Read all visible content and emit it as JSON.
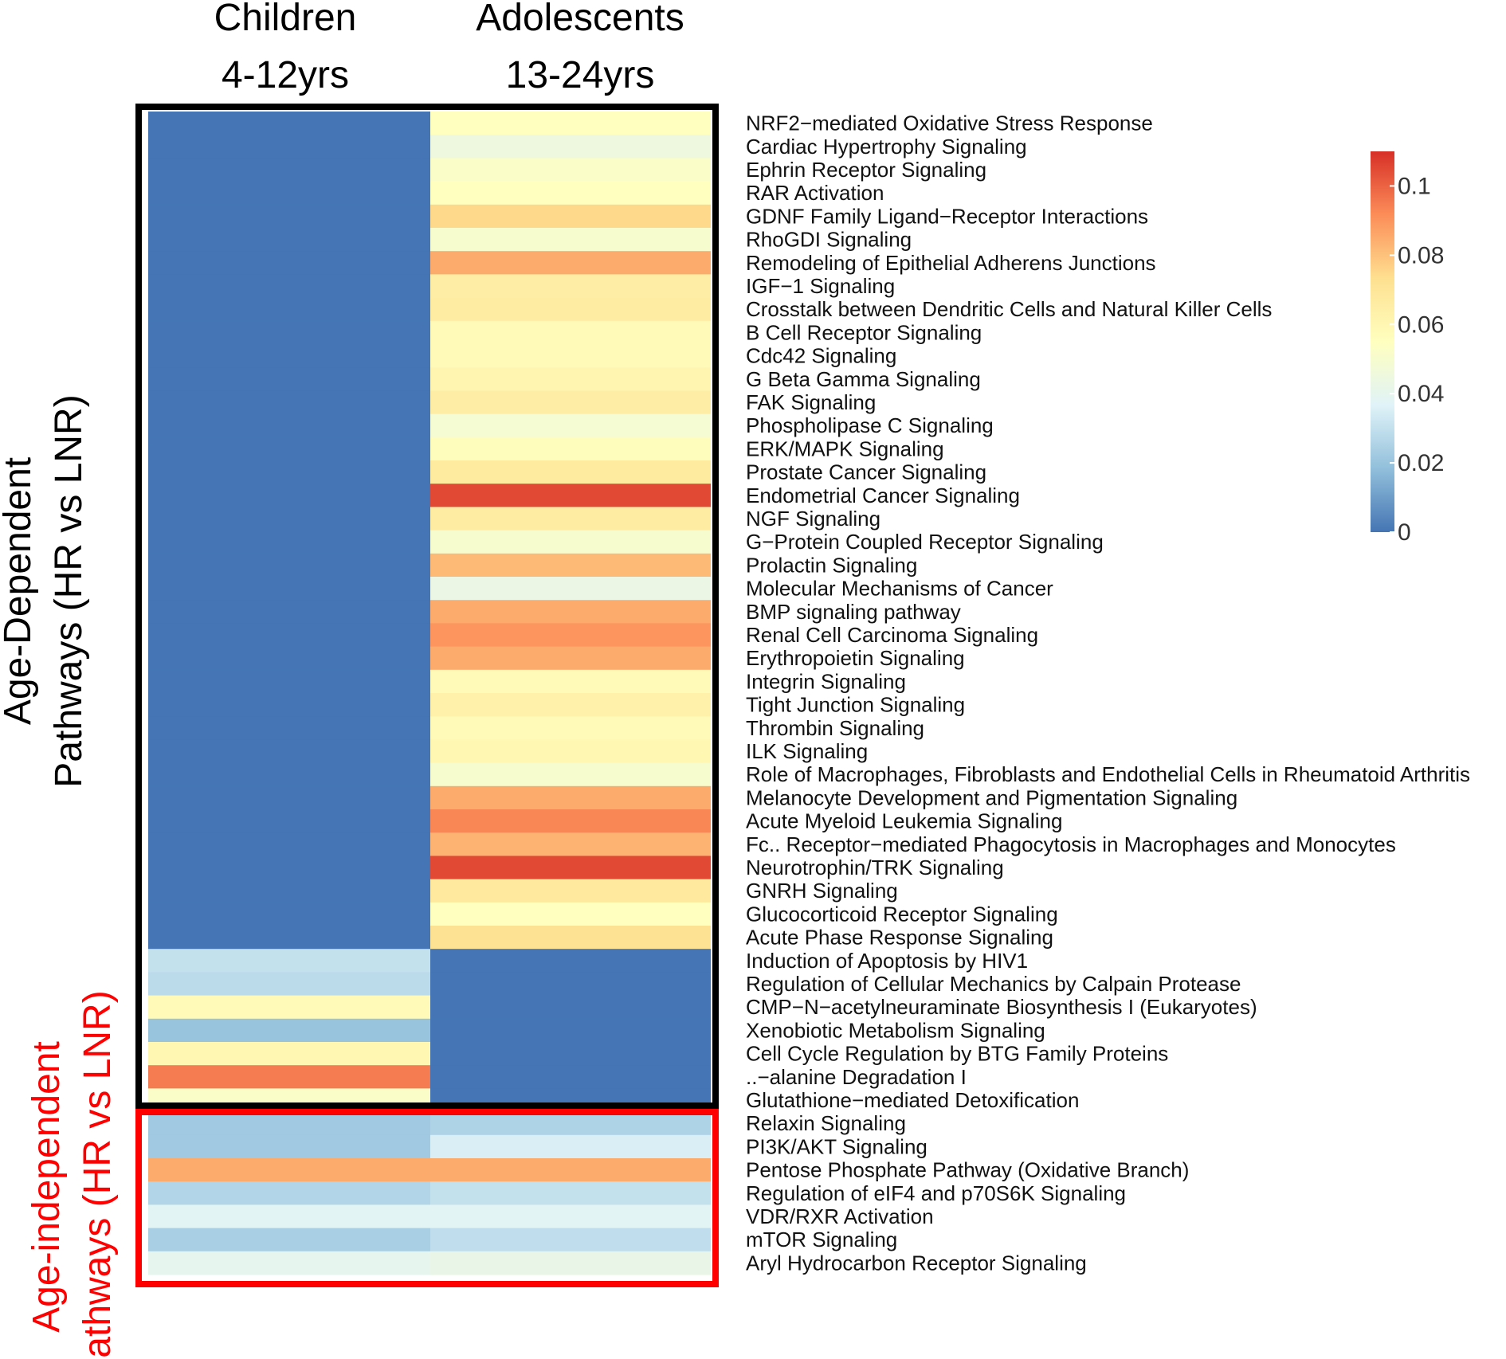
{
  "chart_data": {
    "type": "heatmap",
    "columns": [
      {
        "line1": "Children",
        "line2": "4-12yrs"
      },
      {
        "line1": "Adolescents",
        "line2": "13-24yrs"
      }
    ],
    "groups": [
      {
        "label_line1": "Age-Dependent",
        "label_line2": "Pathways (HR vs LNR)",
        "color": "#000000",
        "start": 0,
        "end": 42
      },
      {
        "label_line1": "Age-independent",
        "label_line2": "Pathways (HR vs LNR)",
        "color": "#ff0000",
        "start": 42,
        "end": 49
      }
    ],
    "rows": [
      {
        "label": "NRF2−mediated Oxidative Stress Response",
        "values": [
          0,
          0.055
        ]
      },
      {
        "label": "Cardiac Hypertrophy Signaling",
        "values": [
          0,
          0.045
        ]
      },
      {
        "label": "Ephrin Receptor Signaling",
        "values": [
          0,
          0.052
        ]
      },
      {
        "label": "RAR Activation",
        "values": [
          0,
          0.055
        ]
      },
      {
        "label": "GDNF Family Ligand−Receptor Interactions",
        "values": [
          0,
          0.075
        ]
      },
      {
        "label": "RhoGDI Signaling",
        "values": [
          0,
          0.05
        ]
      },
      {
        "label": "Remodeling of Epithelial Adherens Junctions",
        "values": [
          0,
          0.085
        ]
      },
      {
        "label": "IGF−1 Signaling",
        "values": [
          0,
          0.065
        ]
      },
      {
        "label": "Crosstalk between Dendritic Cells and Natural Killer Cells",
        "values": [
          0,
          0.066
        ]
      },
      {
        "label": "B Cell Receptor Signaling",
        "values": [
          0,
          0.058
        ]
      },
      {
        "label": "Cdc42 Signaling",
        "values": [
          0,
          0.058
        ]
      },
      {
        "label": "G Beta Gamma Signaling",
        "values": [
          0,
          0.061
        ]
      },
      {
        "label": "FAK Signaling",
        "values": [
          0,
          0.065
        ]
      },
      {
        "label": "Phospholipase C Signaling",
        "values": [
          0,
          0.049
        ]
      },
      {
        "label": "ERK/MAPK Signaling",
        "values": [
          0,
          0.056
        ]
      },
      {
        "label": "Prostate Cancer Signaling",
        "values": [
          0,
          0.067
        ]
      },
      {
        "label": "Endometrial Cancer Signaling",
        "values": [
          0,
          0.105
        ]
      },
      {
        "label": "NGF Signaling",
        "values": [
          0,
          0.066
        ]
      },
      {
        "label": "G−Protein Coupled Receptor Signaling",
        "values": [
          0,
          0.05
        ]
      },
      {
        "label": "Prolactin Signaling",
        "values": [
          0,
          0.082
        ]
      },
      {
        "label": "Molecular Mechanisms of Cancer",
        "values": [
          0,
          0.043
        ]
      },
      {
        "label": "BMP signaling pathway",
        "values": [
          0,
          0.085
        ]
      },
      {
        "label": "Renal Cell Carcinoma Signaling",
        "values": [
          0,
          0.09
        ]
      },
      {
        "label": "Erythropoietin Signaling",
        "values": [
          0,
          0.085
        ]
      },
      {
        "label": "Integrin Signaling",
        "values": [
          0,
          0.058
        ]
      },
      {
        "label": "Tight Junction Signaling",
        "values": [
          0,
          0.063
        ]
      },
      {
        "label": "Thrombin Signaling",
        "values": [
          0,
          0.058
        ]
      },
      {
        "label": "ILK Signaling",
        "values": [
          0,
          0.06
        ]
      },
      {
        "label": "Role of Macrophages, Fibroblasts and Endothelial Cells in Rheumatoid Arthritis",
        "values": [
          0,
          0.05
        ]
      },
      {
        "label": "Melanocyte Development and Pigmentation Signaling",
        "values": [
          0,
          0.085
        ]
      },
      {
        "label": "Acute Myeloid Leukemia Signaling",
        "values": [
          0,
          0.093
        ]
      },
      {
        "label": "Fc.. Receptor−mediated Phagocytosis in Macrophages and Monocytes",
        "values": [
          0,
          0.083
        ]
      },
      {
        "label": "Neurotrophin/TRK Signaling",
        "values": [
          0,
          0.105
        ]
      },
      {
        "label": "GNRH Signaling",
        "values": [
          0,
          0.068
        ]
      },
      {
        "label": "Glucocorticoid Receptor Signaling",
        "values": [
          0,
          0.055
        ]
      },
      {
        "label": "Acute Phase Response Signaling",
        "values": [
          0,
          0.072
        ]
      },
      {
        "label": "Induction of Apoptosis by HIV1",
        "values": [
          0.03,
          0
        ]
      },
      {
        "label": "Regulation of Cellular Mechanics by Calpain Protease",
        "values": [
          0.028,
          0
        ]
      },
      {
        "label": "CMP−N−acetylneuraminate Biosynthesis I (Eukaryotes)",
        "values": [
          0.058,
          0
        ]
      },
      {
        "label": "Xenobiotic Metabolism Signaling",
        "values": [
          0.02,
          0
        ]
      },
      {
        "label": "Cell Cycle Regulation by BTG Family Proteins",
        "values": [
          0.06,
          0
        ]
      },
      {
        "label": "..−alanine Degradation I",
        "values": [
          0.095,
          0
        ]
      },
      {
        "label": "Glutathione−mediated Detoxification",
        "values": [
          0.052,
          0
        ]
      },
      {
        "label": "Relaxin Signaling",
        "values": [
          0.022,
          0.025
        ]
      },
      {
        "label": "PI3K/AKT Signaling",
        "values": [
          0.022,
          0.035
        ]
      },
      {
        "label": "Pentose Phosphate Pathway (Oxidative Branch)",
        "values": [
          0.085,
          0.085
        ]
      },
      {
        "label": "Regulation of eIF4 and p70S6K Signaling",
        "values": [
          0.026,
          0.03
        ]
      },
      {
        "label": "VDR/RXR Activation",
        "values": [
          0.038,
          0.038
        ]
      },
      {
        "label": "mTOR Signaling",
        "values": [
          0.024,
          0.029
        ]
      },
      {
        "label": "Aryl Hydrocarbon Receptor Signaling",
        "values": [
          0.04,
          0.042
        ]
      }
    ],
    "colorbar": {
      "ticks": [
        "0",
        "0.02",
        "0.04",
        "0.06",
        "0.08",
        "0.1"
      ],
      "tick_values": [
        0,
        0.02,
        0.04,
        0.06,
        0.08,
        0.1
      ],
      "range": [
        0,
        0.11
      ],
      "colors": [
        "#4575b4",
        "#91bfdb",
        "#e0f3f8",
        "#ffffbf",
        "#fee090",
        "#fc8d59",
        "#d73027"
      ]
    }
  }
}
